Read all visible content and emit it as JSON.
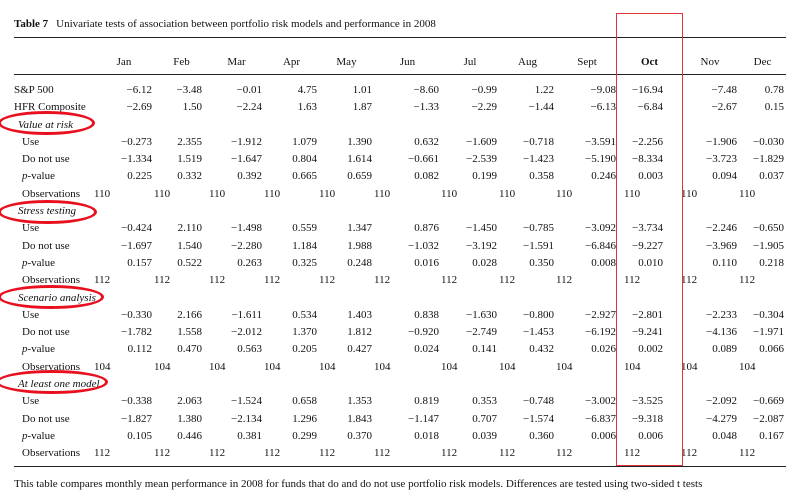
{
  "caption": {
    "table_number": "Table 7",
    "title": "Univariate tests of association between portfolio risk models and performance in 2008"
  },
  "columns": [
    "Jan",
    "Feb",
    "Mar",
    "Apr",
    "May",
    "Jun",
    "Jul",
    "Aug",
    "Sept",
    "Oct",
    "Nov",
    "Dec"
  ],
  "benchmarks": [
    {
      "label": "S&P 500",
      "values": [
        "−6.12",
        "−3.48",
        "−0.01",
        "4.75",
        "1.01",
        "−8.60",
        "−0.99",
        "1.22",
        "−9.08",
        "−16.94",
        "−7.48",
        "0.78"
      ]
    },
    {
      "label": "HFR Composite",
      "values": [
        "−2.69",
        "1.50",
        "−2.24",
        "1.63",
        "1.87",
        "−1.33",
        "−2.29",
        "−1.44",
        "−6.13",
        "−6.84",
        "−2.67",
        "0.15"
      ]
    }
  ],
  "sections": [
    {
      "title": "Value at risk",
      "rows": [
        {
          "label": "Use",
          "values": [
            "−0.273",
            "2.355",
            "−1.912",
            "1.079",
            "1.390",
            "0.632",
            "−1.609",
            "−0.718",
            "−3.591",
            "−2.256",
            "−1.906",
            "−0.030"
          ]
        },
        {
          "label": "Do not use",
          "values": [
            "−1.334",
            "1.519",
            "−1.647",
            "0.804",
            "1.614",
            "−0.661",
            "−2.539",
            "−1.423",
            "−5.190",
            "−8.334",
            "−3.723",
            "−1.829"
          ]
        },
        {
          "label_prefix": "p",
          "label": "-value",
          "values": [
            "0.225",
            "0.332",
            "0.392",
            "0.665",
            "0.659",
            "0.082",
            "0.199",
            "0.358",
            "0.246",
            "0.003",
            "0.094",
            "0.037"
          ]
        },
        {
          "label": "Observations",
          "values": [
            "110",
            "110",
            "110",
            "110",
            "110",
            "110",
            "110",
            "110",
            "110",
            "110",
            "110",
            "110"
          ]
        }
      ]
    },
    {
      "title": "Stress testing",
      "rows": [
        {
          "label": "Use",
          "values": [
            "−0.424",
            "2.110",
            "−1.498",
            "0.559",
            "1.347",
            "0.876",
            "−1.450",
            "−0.785",
            "−3.092",
            "−3.734",
            "−2.246",
            "−0.650"
          ]
        },
        {
          "label": "Do not use",
          "values": [
            "−1.697",
            "1.540",
            "−2.280",
            "1.184",
            "1.988",
            "−1.032",
            "−3.192",
            "−1.591",
            "−6.846",
            "−9.227",
            "−3.969",
            "−1.905"
          ]
        },
        {
          "label_prefix": "p",
          "label": "-value",
          "values": [
            "0.157",
            "0.522",
            "0.263",
            "0.325",
            "0.248",
            "0.016",
            "0.028",
            "0.350",
            "0.008",
            "0.010",
            "0.110",
            "0.218"
          ]
        },
        {
          "label": "Observations",
          "values": [
            "112",
            "112",
            "112",
            "112",
            "112",
            "112",
            "112",
            "112",
            "112",
            "112",
            "112",
            "112"
          ]
        }
      ]
    },
    {
      "title": "Scenario analysis",
      "rows": [
        {
          "label": "Use",
          "values": [
            "−0.330",
            "2.166",
            "−1.611",
            "0.534",
            "1.403",
            "0.838",
            "−1.630",
            "−0.800",
            "−2.927",
            "−2.801",
            "−2.233",
            "−0.304"
          ]
        },
        {
          "label": "Do not use",
          "values": [
            "−1.782",
            "1.558",
            "−2.012",
            "1.370",
            "1.812",
            "−0.920",
            "−2.749",
            "−1.453",
            "−6.192",
            "−9.241",
            "−4.136",
            "−1.971"
          ]
        },
        {
          "label_prefix": "p",
          "label": "-value",
          "values": [
            "0.112",
            "0.470",
            "0.563",
            "0.205",
            "0.427",
            "0.024",
            "0.141",
            "0.432",
            "0.026",
            "0.002",
            "0.089",
            "0.066"
          ]
        },
        {
          "label": "Observations",
          "values": [
            "104",
            "104",
            "104",
            "104",
            "104",
            "104",
            "104",
            "104",
            "104",
            "104",
            "104",
            "104"
          ]
        }
      ]
    },
    {
      "title": "At least one model",
      "rows": [
        {
          "label": "Use",
          "values": [
            "−0.338",
            "2.063",
            "−1.524",
            "0.658",
            "1.353",
            "0.819",
            "0.353",
            "−0.748",
            "−3.002",
            "−3.525",
            "−2.092",
            "−0.669"
          ]
        },
        {
          "label": "Do not use",
          "values": [
            "−1.827",
            "1.380",
            "−2.134",
            "1.296",
            "1.843",
            "−1.147",
            "0.707",
            "−1.574",
            "−6.837",
            "−9.318",
            "−4.279",
            "−2.087"
          ]
        },
        {
          "label_prefix": "p",
          "label": "-value",
          "values": [
            "0.105",
            "0.446",
            "0.381",
            "0.299",
            "0.370",
            "0.018",
            "0.039",
            "0.360",
            "0.006",
            "0.006",
            "0.048",
            "0.167"
          ]
        },
        {
          "label": "Observations",
          "values": [
            "112",
            "112",
            "112",
            "112",
            "112",
            "112",
            "112",
            "112",
            "112",
            "112",
            "112",
            "112"
          ]
        }
      ]
    }
  ],
  "footnote": "This table compares monthly mean performance in 2008 for funds that do and do not use portfolio risk models. Differences are tested using two-sided t tests",
  "highlight_color": "#e8101e"
}
